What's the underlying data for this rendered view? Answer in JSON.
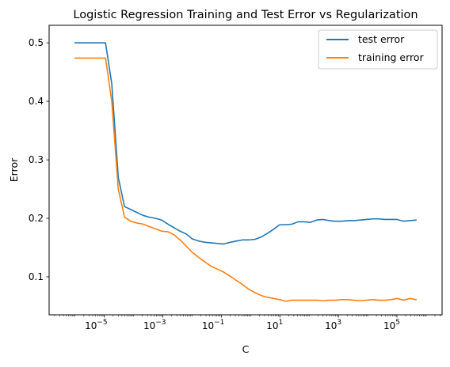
{
  "chart_data": {
    "type": "line",
    "title": "Logistic Regression Training and Test Error vs Regularization",
    "xlabel": "C",
    "ylabel": "Error",
    "xscale": "log",
    "xlim": [
      1.3e-07,
      3500000.0
    ],
    "ylim": [
      0.035,
      0.53
    ],
    "grid": false,
    "legend_position": "top-right",
    "x_ticks": [
      {
        "value": 1e-05,
        "base": "10",
        "exp": "−5"
      },
      {
        "value": 0.001,
        "base": "10",
        "exp": "−3"
      },
      {
        "value": 0.1,
        "base": "10",
        "exp": "−1"
      },
      {
        "value": 10.0,
        "base": "10",
        "exp": "1"
      },
      {
        "value": 1000.0,
        "base": "10",
        "exp": "3"
      },
      {
        "value": 100000.0,
        "base": "10",
        "exp": "5"
      }
    ],
    "y_ticks": [
      {
        "value": 0.1,
        "label": "0.1"
      },
      {
        "value": 0.2,
        "label": "0.2"
      },
      {
        "value": 0.3,
        "label": "0.3"
      },
      {
        "value": 0.4,
        "label": "0.4"
      },
      {
        "value": 0.5,
        "label": "0.5"
      }
    ],
    "x": [
      1e-06,
      1.6e-06,
      2.6e-06,
      4.3e-06,
      7e-06,
      1.1e-05,
      1.8e-05,
      3e-05,
      4.9e-05,
      8e-05,
      0.00013,
      0.00021,
      0.00034,
      0.00056,
      0.00091,
      0.0015,
      0.0024,
      0.0039,
      0.0064,
      0.01,
      0.017,
      0.028,
      0.045,
      0.074,
      0.12,
      0.2,
      0.32,
      0.52,
      0.85,
      1.4,
      2.3,
      3.7,
      6,
      9.8,
      16,
      26,
      42,
      69,
      110,
      180,
      300,
      490,
      790,
      1300,
      2100,
      3400,
      5600,
      9100,
      15000,
      24000,
      39000,
      64000,
      100000,
      170000,
      280000,
      450000
    ],
    "series": [
      {
        "name": "test error",
        "color": "#1f77b4",
        "values": [
          0.5,
          0.5,
          0.5,
          0.5,
          0.5,
          0.5,
          0.43,
          0.27,
          0.22,
          0.215,
          0.21,
          0.205,
          0.202,
          0.2,
          0.197,
          0.19,
          0.184,
          0.178,
          0.173,
          0.165,
          0.161,
          0.159,
          0.158,
          0.157,
          0.156,
          0.159,
          0.161,
          0.163,
          0.163,
          0.164,
          0.168,
          0.174,
          0.181,
          0.189,
          0.189,
          0.19,
          0.194,
          0.194,
          0.193,
          0.197,
          0.198,
          0.196,
          0.195,
          0.195,
          0.196,
          0.196,
          0.197,
          0.198,
          0.199,
          0.199,
          0.198,
          0.198,
          0.198,
          0.195,
          0.196,
          0.197
        ]
      },
      {
        "name": "training error",
        "color": "#ff7f0e",
        "values": [
          0.474,
          0.474,
          0.474,
          0.474,
          0.474,
          0.474,
          0.4,
          0.25,
          0.202,
          0.195,
          0.192,
          0.19,
          0.186,
          0.182,
          0.178,
          0.177,
          0.172,
          0.163,
          0.152,
          0.142,
          0.133,
          0.125,
          0.118,
          0.113,
          0.108,
          0.101,
          0.094,
          0.087,
          0.079,
          0.073,
          0.068,
          0.065,
          0.063,
          0.061,
          0.058,
          0.06,
          0.06,
          0.06,
          0.06,
          0.06,
          0.059,
          0.06,
          0.06,
          0.061,
          0.061,
          0.06,
          0.059,
          0.06,
          0.061,
          0.06,
          0.06,
          0.061,
          0.063,
          0.06,
          0.063,
          0.061
        ]
      }
    ]
  }
}
